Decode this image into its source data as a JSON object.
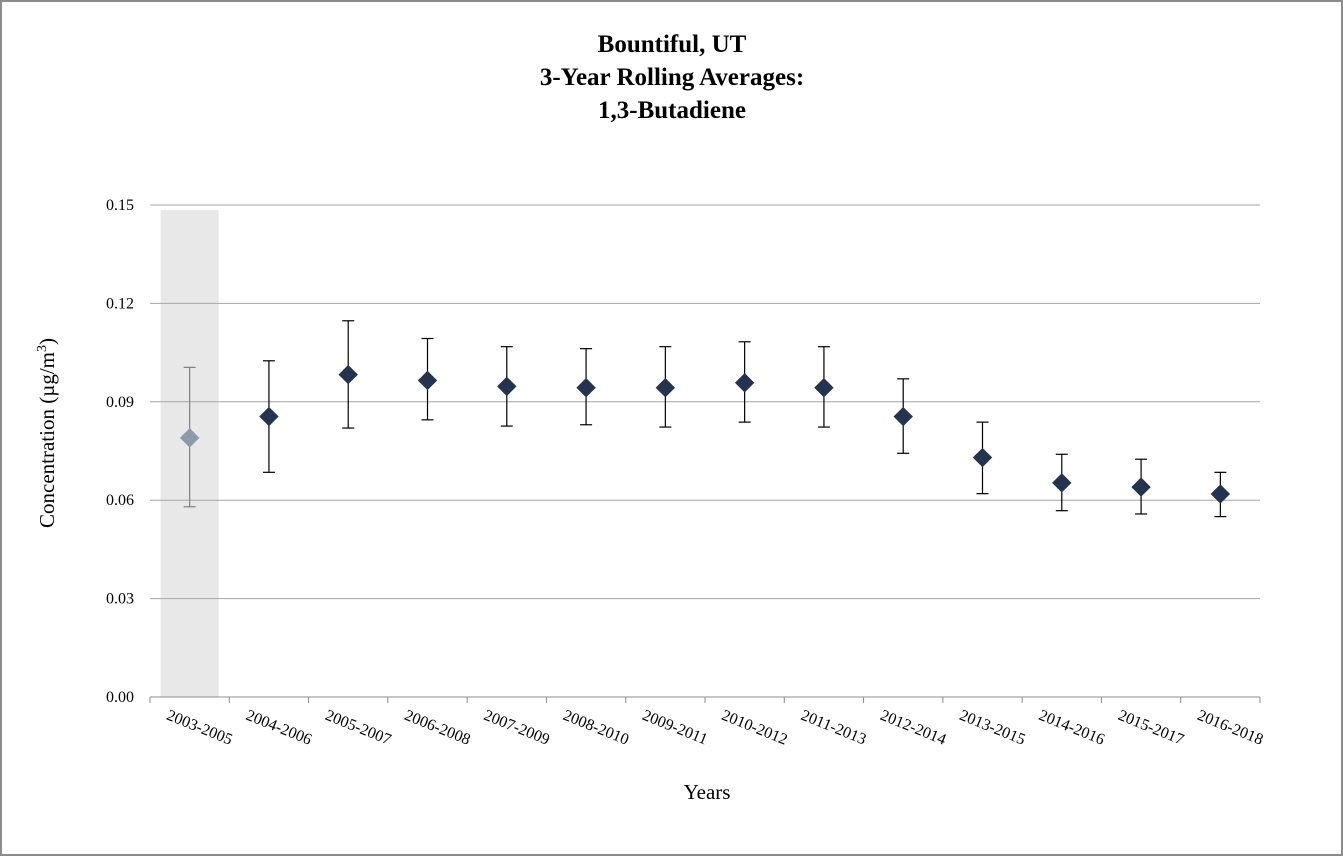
{
  "chart_data": {
    "type": "scatter",
    "title_lines": [
      "Bountiful, UT",
      "3-Year Rolling  Averages:",
      "1,3-Butadiene"
    ],
    "xlabel": "Years",
    "ylabel_main": "Concentration (µg/m",
    "ylabel_sup": "3",
    "ylabel_end": ")",
    "ylim": [
      0,
      0.15
    ],
    "yticks": [
      "0.00",
      "0.03",
      "0.06",
      "0.09",
      "0.12",
      "0.15"
    ],
    "grid": true,
    "categories": [
      "2003-2005",
      "2004-2006",
      "2005-2007",
      "2006-2008",
      "2007-2009",
      "2008-2010",
      "2009-2011",
      "2010-2012",
      "2011-2013",
      "2012-2014",
      "2013-2015",
      "2014-2016",
      "2015-2017",
      "2016-2018"
    ],
    "values": [
      0.079,
      0.0855,
      0.0983,
      0.0965,
      0.0947,
      0.0943,
      0.0943,
      0.0958,
      0.0943,
      0.0855,
      0.073,
      0.0653,
      0.064,
      0.0619
    ],
    "err_low": [
      0.058,
      0.0685,
      0.082,
      0.0845,
      0.0826,
      0.083,
      0.0823,
      0.0838,
      0.0823,
      0.0743,
      0.062,
      0.0568,
      0.0558,
      0.055
    ],
    "err_high": [
      0.1005,
      0.1025,
      0.1147,
      0.1093,
      0.1068,
      0.1062,
      0.1068,
      0.1083,
      0.1068,
      0.097,
      0.0838,
      0.074,
      0.0725,
      0.0685
    ],
    "highlight_index": 0,
    "colors": {
      "marker": "#243450",
      "marker_highlight": "#8e99ab",
      "error_bar": "#000000",
      "error_bar_highlight": "#7f7f7f",
      "highlight_band": "#e8e8e8",
      "gridline": "#a6a6a6"
    }
  }
}
